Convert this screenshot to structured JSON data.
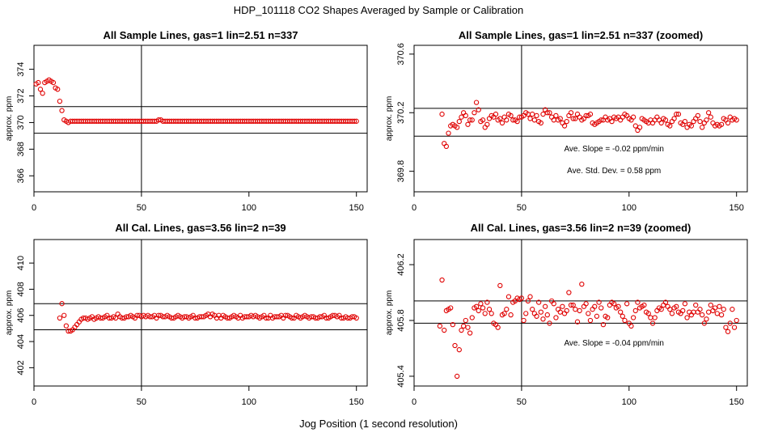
{
  "main_title": "HDP_101118  CO2 Shapes Averaged by Sample or Calibration",
  "x_axis_label": "Jog Position (1 second resolution)",
  "colors": {
    "points": "#e00000",
    "lines": "#000000",
    "frame": "#000000"
  },
  "chart_data": [
    {
      "type": "scatter",
      "title": "All Sample Lines, gas=1 lin=2.51 n=337",
      "ylabel": "approx. ppm",
      "xlim": [
        0,
        155
      ],
      "ylim": [
        364.8,
        375.8
      ],
      "xticks": [
        0,
        50,
        100,
        150
      ],
      "yticks": [
        366,
        368,
        370,
        372,
        374
      ],
      "hlines": [
        369.2,
        371.2
      ],
      "vline": 50,
      "annotations": [],
      "series": {
        "x_start": 1,
        "values": [
          372.9,
          373.0,
          372.5,
          372.2,
          373.0,
          373.1,
          373.2,
          373.1,
          373.0,
          372.6,
          372.5,
          371.6,
          370.9,
          370.2,
          370.1,
          370.0,
          370.1,
          370.1,
          370.1,
          370.1,
          370.1,
          370.1,
          370.1,
          370.1,
          370.1,
          370.1,
          370.1,
          370.1,
          370.1,
          370.1,
          370.1,
          370.1,
          370.1,
          370.1,
          370.1,
          370.1,
          370.1,
          370.1,
          370.1,
          370.1,
          370.1,
          370.1,
          370.1,
          370.1,
          370.1,
          370.1,
          370.1,
          370.1,
          370.1,
          370.1,
          370.1,
          370.1,
          370.1,
          370.1,
          370.1,
          370.1,
          370.1,
          370.2,
          370.2,
          370.1,
          370.1,
          370.1,
          370.1,
          370.1,
          370.1,
          370.1,
          370.1,
          370.1,
          370.1,
          370.1,
          370.1,
          370.1,
          370.1,
          370.1,
          370.1,
          370.1,
          370.1,
          370.1,
          370.1,
          370.1,
          370.1,
          370.1,
          370.1,
          370.1,
          370.1,
          370.1,
          370.1,
          370.1,
          370.1,
          370.1,
          370.1,
          370.1,
          370.1,
          370.1,
          370.1,
          370.1,
          370.1,
          370.1,
          370.1,
          370.1,
          370.1,
          370.1,
          370.1,
          370.1,
          370.1,
          370.1,
          370.1,
          370.1,
          370.1,
          370.1,
          370.1,
          370.1,
          370.1,
          370.1,
          370.1,
          370.1,
          370.1,
          370.1,
          370.1,
          370.1,
          370.1,
          370.1,
          370.1,
          370.1,
          370.1,
          370.1,
          370.1,
          370.1,
          370.1,
          370.1,
          370.1,
          370.1,
          370.1,
          370.1,
          370.1,
          370.1,
          370.1,
          370.1,
          370.1,
          370.1,
          370.1,
          370.1,
          370.1,
          370.1,
          370.1,
          370.1,
          370.1,
          370.1,
          370.1,
          370.1
        ]
      }
    },
    {
      "type": "scatter",
      "title": "All Sample Lines, gas=1 lin=2.51 n=337 (zoomed)",
      "ylabel": "approx. ppm",
      "xlim": [
        0,
        155
      ],
      "ylim": [
        369.66,
        370.66
      ],
      "xticks": [
        0,
        50,
        100,
        150
      ],
      "yticks": [
        369.8,
        370.2,
        370.6
      ],
      "hlines": [
        370.04,
        370.23
      ],
      "vline": 50,
      "annotations": [
        "Ave. Slope =  -0.02  ppm/min",
        "Ave. Std. Dev. =  0.58  ppm"
      ],
      "series": {
        "x_start": 13,
        "values": [
          370.19,
          369.99,
          369.97,
          370.06,
          370.11,
          370.12,
          370.11,
          370.1,
          370.14,
          370.17,
          370.2,
          370.18,
          370.12,
          370.15,
          370.15,
          370.2,
          370.27,
          370.22,
          370.14,
          370.15,
          370.1,
          370.12,
          370.16,
          370.18,
          370.17,
          370.19,
          370.15,
          370.16,
          370.13,
          370.17,
          370.15,
          370.19,
          370.18,
          370.15,
          370.15,
          370.14,
          370.17,
          370.17,
          370.18,
          370.2,
          370.19,
          370.16,
          370.19,
          370.15,
          370.18,
          370.14,
          370.13,
          370.19,
          370.22,
          370.2,
          370.2,
          370.17,
          370.15,
          370.18,
          370.15,
          370.16,
          370.13,
          370.11,
          370.14,
          370.18,
          370.2,
          370.16,
          370.16,
          370.19,
          370.17,
          370.15,
          370.16,
          370.18,
          370.18,
          370.19,
          370.13,
          370.12,
          370.13,
          370.14,
          370.15,
          370.15,
          370.17,
          370.15,
          370.16,
          370.14,
          370.17,
          370.16,
          370.17,
          370.15,
          370.17,
          370.19,
          370.18,
          370.16,
          370.15,
          370.17,
          370.11,
          370.08,
          370.1,
          370.16,
          370.15,
          370.14,
          370.13,
          370.15,
          370.13,
          370.15,
          370.17,
          370.15,
          370.13,
          370.16,
          370.15,
          370.12,
          370.11,
          370.14,
          370.16,
          370.19,
          370.19,
          370.13,
          370.12,
          370.14,
          370.1,
          370.12,
          370.11,
          370.14,
          370.16,
          370.18,
          370.14,
          370.1,
          370.13,
          370.15,
          370.2,
          370.17,
          370.13,
          370.11,
          370.12,
          370.11,
          370.12,
          370.16,
          370.15,
          370.13,
          370.17,
          370.15,
          370.16,
          370.15
        ]
      }
    },
    {
      "type": "scatter",
      "title": "All Cal. Lines, gas=3.56 lin=2 n=39",
      "ylabel": "approx. ppm",
      "xlim": [
        0,
        155
      ],
      "ylim": [
        400.6,
        411.8
      ],
      "xticks": [
        0,
        50,
        100,
        150
      ],
      "yticks": [
        402,
        404,
        406,
        408,
        410
      ],
      "hlines": [
        404.9,
        406.9
      ],
      "vline": 50,
      "annotations": [],
      "series": {
        "x_start": 12,
        "values": [
          405.8,
          406.9,
          406.0,
          405.2,
          404.8,
          404.8,
          404.9,
          405.1,
          405.3,
          405.5,
          405.7,
          405.8,
          405.8,
          405.7,
          405.8,
          405.9,
          405.7,
          405.8,
          405.9,
          405.8,
          405.8,
          405.9,
          406.0,
          405.8,
          405.8,
          405.9,
          405.8,
          406.1,
          405.9,
          405.8,
          405.8,
          405.9,
          405.9,
          406.0,
          405.9,
          405.8,
          406.0,
          406.0,
          405.9,
          406.0,
          405.9,
          406.0,
          405.9,
          405.9,
          406.0,
          405.8,
          406.0,
          406.0,
          405.9,
          405.9,
          406.0,
          405.9,
          405.8,
          405.8,
          405.9,
          406.0,
          405.9,
          405.8,
          405.9,
          405.9,
          405.8,
          405.9,
          406.0,
          405.8,
          405.8,
          405.9,
          405.9,
          405.9,
          406.0,
          406.1,
          405.9,
          406.1,
          406.0,
          405.8,
          406.0,
          405.8,
          406.0,
          405.9,
          405.8,
          405.8,
          405.9,
          406.0,
          405.9,
          405.8,
          406.0,
          405.8,
          405.9,
          405.9,
          405.9,
          406.0,
          405.9,
          406.0,
          405.9,
          405.8,
          405.9,
          406.0,
          405.8,
          405.8,
          406.0,
          405.8,
          405.9,
          405.9,
          405.9,
          406.0,
          405.8,
          406.0,
          406.0,
          405.9,
          405.8,
          405.8,
          406.0,
          405.9,
          405.8,
          405.9,
          406.0,
          405.9,
          405.8,
          405.9,
          405.9,
          405.8,
          405.8,
          405.9,
          405.9,
          406.0,
          405.8,
          405.8,
          405.9,
          406.0,
          406.0,
          405.9,
          406.0,
          405.8,
          405.8,
          405.9,
          405.8,
          405.8,
          405.9,
          405.9,
          405.8
        ]
      }
    },
    {
      "type": "scatter",
      "title": "All Cal. Lines, gas=3.56 lin=2 n=39 (zoomed)",
      "ylabel": "approx. ppm",
      "xlim": [
        0,
        155
      ],
      "ylim": [
        405.33,
        406.38
      ],
      "xticks": [
        0,
        50,
        100,
        150
      ],
      "yticks": [
        405.4,
        405.8,
        406.2
      ],
      "hlines": [
        405.78,
        405.94
      ],
      "vline": 50,
      "annotations": [
        "Ave. Slope =  -0.04  ppm/min"
      ],
      "series": {
        "x_start": 12,
        "values": [
          405.76,
          406.09,
          405.73,
          405.87,
          405.88,
          405.89,
          405.77,
          405.62,
          405.4,
          405.59,
          405.73,
          405.76,
          405.8,
          405.75,
          405.71,
          405.82,
          405.89,
          405.9,
          405.87,
          405.92,
          405.89,
          405.85,
          405.93,
          405.88,
          405.85,
          405.78,
          405.77,
          405.75,
          406.05,
          405.84,
          405.85,
          405.88,
          405.97,
          405.84,
          405.93,
          405.94,
          405.96,
          405.95,
          405.96,
          405.8,
          405.85,
          405.94,
          405.97,
          405.88,
          405.85,
          405.83,
          405.93,
          405.86,
          405.81,
          405.9,
          405.84,
          405.78,
          405.94,
          405.92,
          405.82,
          405.88,
          405.86,
          405.9,
          405.85,
          405.87,
          406.0,
          405.91,
          405.91,
          405.88,
          405.79,
          405.87,
          406.06,
          405.9,
          405.92,
          405.85,
          405.8,
          405.88,
          405.9,
          405.83,
          405.93,
          405.89,
          405.77,
          405.83,
          405.82,
          405.91,
          405.93,
          405.92,
          405.89,
          405.9,
          405.86,
          405.83,
          405.8,
          405.92,
          405.78,
          405.76,
          405.82,
          405.87,
          405.93,
          405.89,
          405.9,
          405.91,
          405.86,
          405.85,
          405.82,
          405.78,
          405.82,
          405.87,
          405.89,
          405.88,
          405.91,
          405.93,
          405.9,
          405.88,
          405.85,
          405.89,
          405.9,
          405.86,
          405.85,
          405.87,
          405.92,
          405.82,
          405.86,
          405.84,
          405.86,
          405.91,
          405.86,
          405.88,
          405.84,
          405.78,
          405.81,
          405.86,
          405.91,
          405.87,
          405.89,
          405.85,
          405.9,
          405.84,
          405.88,
          405.75,
          405.72,
          405.78,
          405.88,
          405.75,
          405.8
        ]
      }
    }
  ]
}
